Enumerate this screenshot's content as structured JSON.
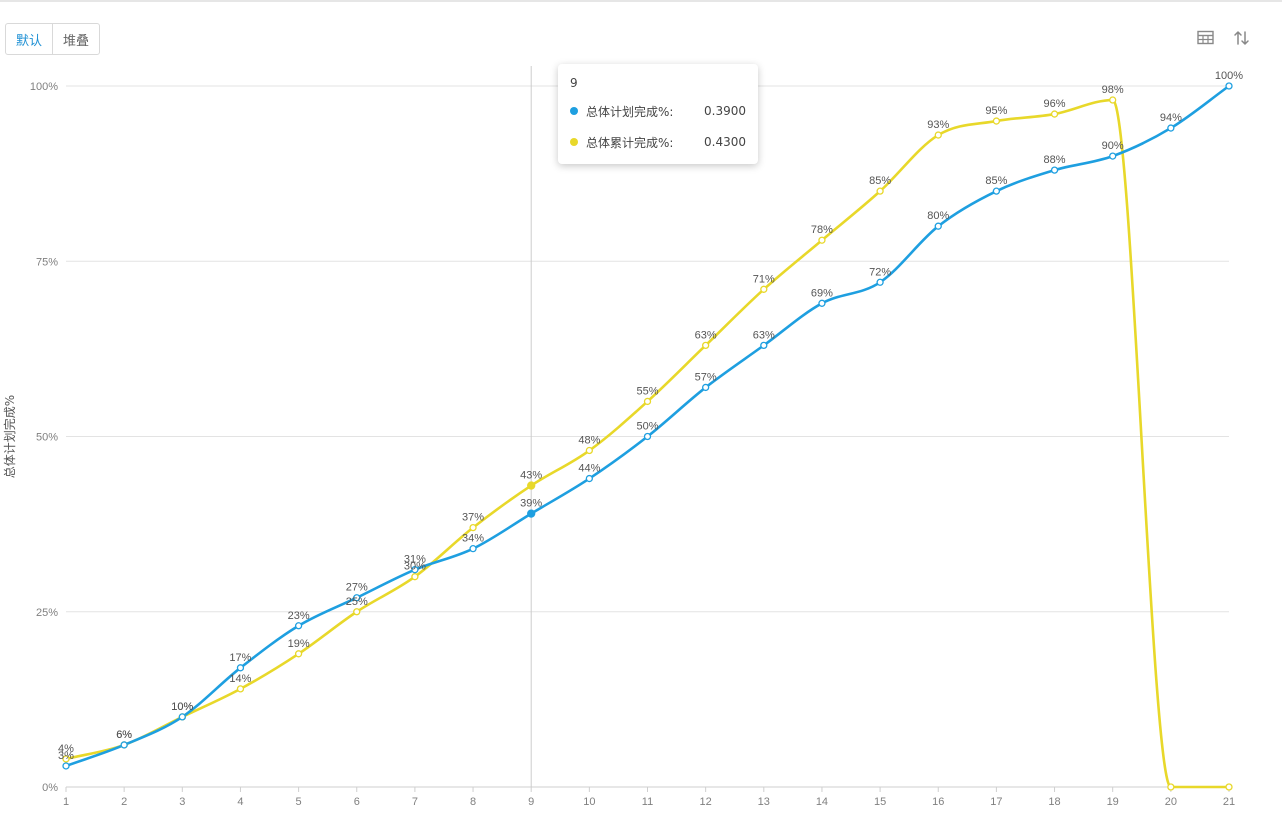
{
  "toolbar": {
    "mode_default_label": "默认",
    "mode_stacked_label": "堆叠",
    "table_icon": "table-icon",
    "sort_icon": "sort-icon"
  },
  "colors": {
    "series_plan": "#1e9fe0",
    "series_actual": "#e8d82a",
    "grid": "#e3e3e3",
    "axis_text": "#808080"
  },
  "tooltip": {
    "title": "9",
    "rows": [
      {
        "name": "总体计划完成%:",
        "value": "0.3900"
      },
      {
        "name": "总体累计完成%:",
        "value": "0.4300"
      }
    ]
  },
  "chart_data": {
    "type": "line",
    "ylabel": "总体计划完成%",
    "xlabel": "",
    "categories": [
      "1",
      "2",
      "3",
      "4",
      "5",
      "6",
      "7",
      "8",
      "9",
      "10",
      "11",
      "12",
      "13",
      "14",
      "15",
      "16",
      "17",
      "18",
      "19",
      "20",
      "21"
    ],
    "ylim": [
      0,
      1
    ],
    "yticks": [
      0,
      0.25,
      0.5,
      0.75,
      1
    ],
    "ytick_labels": [
      "0%",
      "25%",
      "50%",
      "75%",
      "100%"
    ],
    "grid": true,
    "smooth": true,
    "highlighted_category": "9",
    "series": [
      {
        "name": "总体计划完成%",
        "values": [
          0.03,
          0.06,
          0.1,
          0.17,
          0.23,
          0.27,
          0.31,
          0.34,
          0.39,
          0.44,
          0.5,
          0.57,
          0.63,
          0.69,
          0.72,
          0.8,
          0.85,
          0.88,
          0.9,
          0.94,
          1.0
        ],
        "labels": [
          "3%",
          "6%",
          "10%",
          "17%",
          "23%",
          "27%",
          "31%",
          "34%",
          "39%",
          "44%",
          "50%",
          "57%",
          "63%",
          "69%",
          "72%",
          "80%",
          "85%",
          "88%",
          "90%",
          "94%",
          "100%"
        ]
      },
      {
        "name": "总体累计完成%",
        "values": [
          0.04,
          0.06,
          0.1,
          0.14,
          0.19,
          0.25,
          0.3,
          0.37,
          0.43,
          0.48,
          0.55,
          0.63,
          0.71,
          0.78,
          0.85,
          0.93,
          0.95,
          0.96,
          0.98,
          0,
          0
        ],
        "labels": [
          "4%",
          "6%",
          "10%",
          "14%",
          "19%",
          "25%",
          "30%",
          "37%",
          "43%",
          "48%",
          "55%",
          "63%",
          "71%",
          "78%",
          "85%",
          "93%",
          "95%",
          "96%",
          "98%",
          "",
          ""
        ]
      }
    ]
  }
}
